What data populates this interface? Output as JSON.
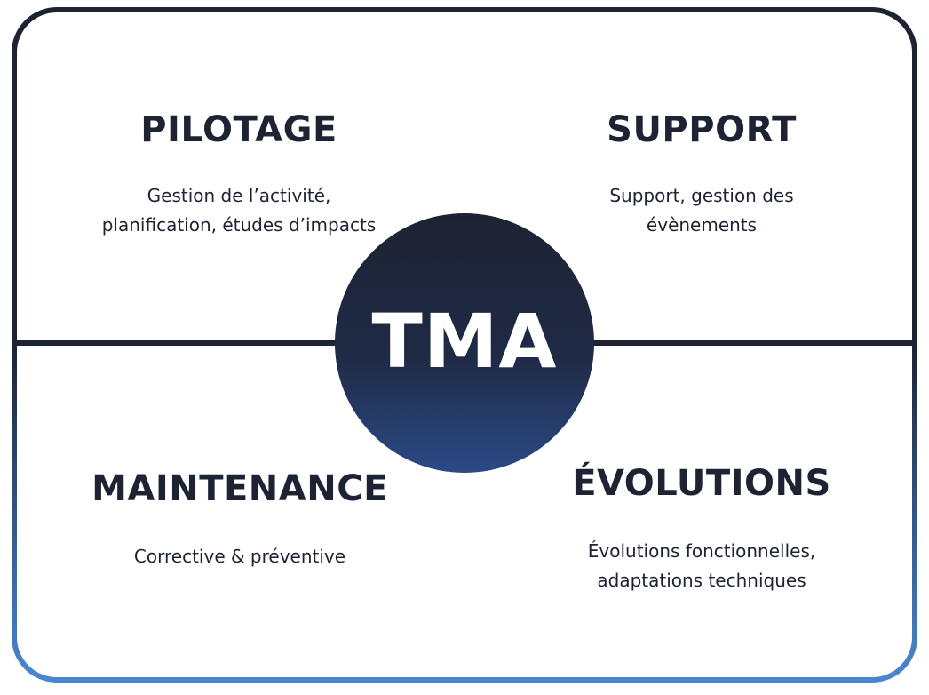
{
  "colors": {
    "frame_top": "#1d2333",
    "frame_bottom": "#4a86d0",
    "circle_top": "#1d2333",
    "circle_bottom": "#2a4a86",
    "text": "#1d2333",
    "center_text": "#ffffff"
  },
  "center": {
    "label": "TMA"
  },
  "quadrants": {
    "pilotage": {
      "title": "PILOTAGE",
      "lines": [
        "Gestion de l’activité,",
        "planification, études d’impacts"
      ]
    },
    "support": {
      "title": "SUPPORT",
      "lines": [
        "Support, gestion des",
        "évènements"
      ]
    },
    "maintenance": {
      "title": "MAINTENANCE",
      "lines": [
        "Corrective & préventive"
      ]
    },
    "evolutions": {
      "title": "ÉVOLUTIONS",
      "lines": [
        "Évolutions fonctionnelles,",
        "adaptations techniques"
      ]
    }
  }
}
